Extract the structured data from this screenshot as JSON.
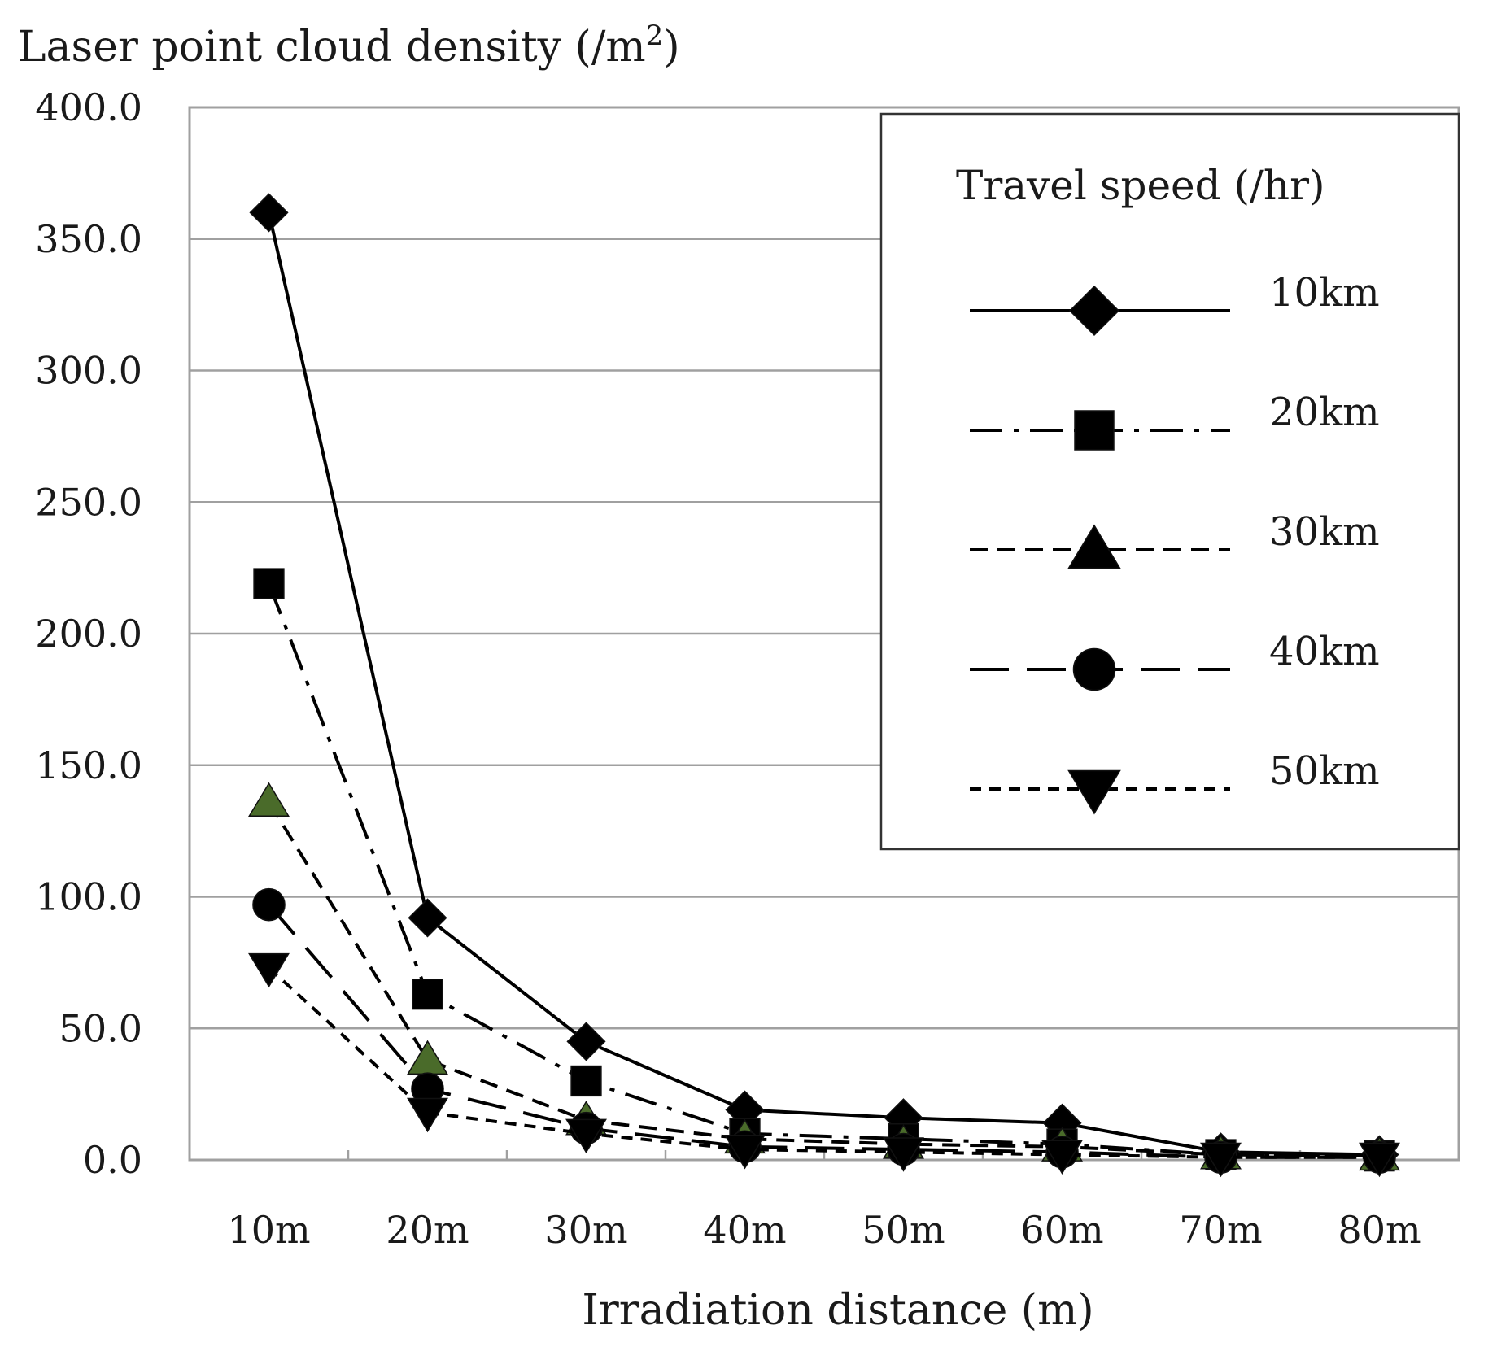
{
  "chart_data": {
    "type": "line",
    "ylabel": "Laser point cloud density (/m",
    "ylabel_superscript": "2",
    "ylabel_close": ")",
    "xlabel": "Irradiation distance (m)",
    "categories": [
      "10m",
      "20m",
      "30m",
      "40m",
      "50m",
      "60m",
      "70m",
      "80m"
    ],
    "yticks": [
      "0.0",
      "50.0",
      "100.0",
      "150.0",
      "200.0",
      "250.0",
      "300.0",
      "350.0",
      "400.0"
    ],
    "ylim": [
      0,
      400
    ],
    "grid": true,
    "legend": {
      "title": "Travel speed (/hr)",
      "placement": "top-right"
    },
    "series": [
      {
        "name": "10km",
        "values": [
          360,
          92,
          45,
          19,
          16,
          14,
          3,
          2
        ],
        "marker": "diamond",
        "dash": "solid",
        "color": "#000000"
      },
      {
        "name": "20km",
        "values": [
          219,
          63,
          30,
          10,
          8,
          6,
          2,
          1.5
        ],
        "marker": "square",
        "dash": "dashdot",
        "color": "#000000"
      },
      {
        "name": "30km",
        "values": [
          136,
          38,
          15,
          8,
          6,
          5,
          2,
          1.5
        ],
        "marker": "triangle-up",
        "dash": "dashed",
        "color": "#4a6b2a"
      },
      {
        "name": "40km",
        "values": [
          97,
          27,
          12,
          5,
          4,
          3,
          1,
          1
        ],
        "marker": "circle",
        "dash": "longdash",
        "color": "#000000"
      },
      {
        "name": "50km",
        "values": [
          73,
          18,
          10,
          4,
          3,
          2,
          1,
          1
        ],
        "marker": "triangle-down",
        "dash": "shortdash",
        "color": "#000000"
      }
    ]
  }
}
